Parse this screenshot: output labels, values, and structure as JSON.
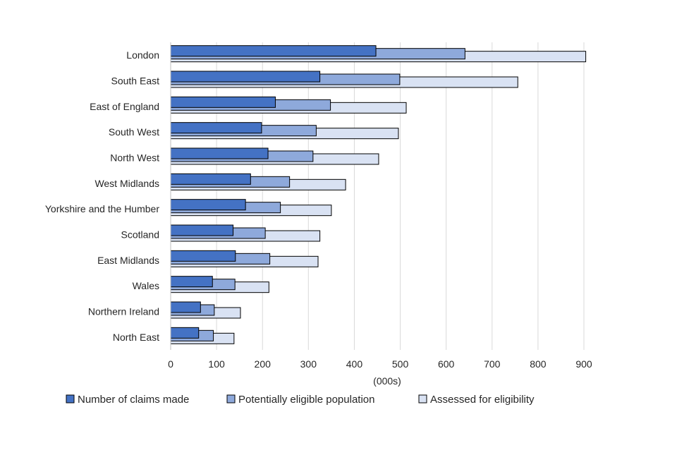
{
  "chart_data": {
    "type": "bar",
    "orientation": "horizontal",
    "title": "",
    "xlabel": "(000s)",
    "ylabel": "",
    "xlim": [
      0,
      900
    ],
    "xticks": [
      0,
      100,
      200,
      300,
      400,
      500,
      600,
      700,
      800,
      900
    ],
    "grid": true,
    "legend_position": "bottom",
    "categories": [
      "London",
      "South East",
      "East of England",
      "South West",
      "North West",
      "West Midlands",
      "Yorkshire and the Humber",
      "Scotland",
      "East Midlands",
      "Wales",
      "Northern Ireland",
      "North East"
    ],
    "series": [
      {
        "name": "Number of claims made",
        "color": "#4472C4",
        "values": [
          447,
          325,
          228,
          198,
          212,
          174,
          163,
          136,
          141,
          91,
          65,
          61
        ]
      },
      {
        "name": "Potentially eligible population",
        "color": "#8EA9DB",
        "values": [
          641,
          499,
          348,
          317,
          310,
          259,
          239,
          206,
          216,
          140,
          95,
          93
        ]
      },
      {
        "name": "Assessed for eligibility",
        "color": "#D9E2F3",
        "values": [
          904,
          756,
          513,
          496,
          453,
          381,
          350,
          325,
          321,
          214,
          152,
          138
        ]
      }
    ]
  }
}
